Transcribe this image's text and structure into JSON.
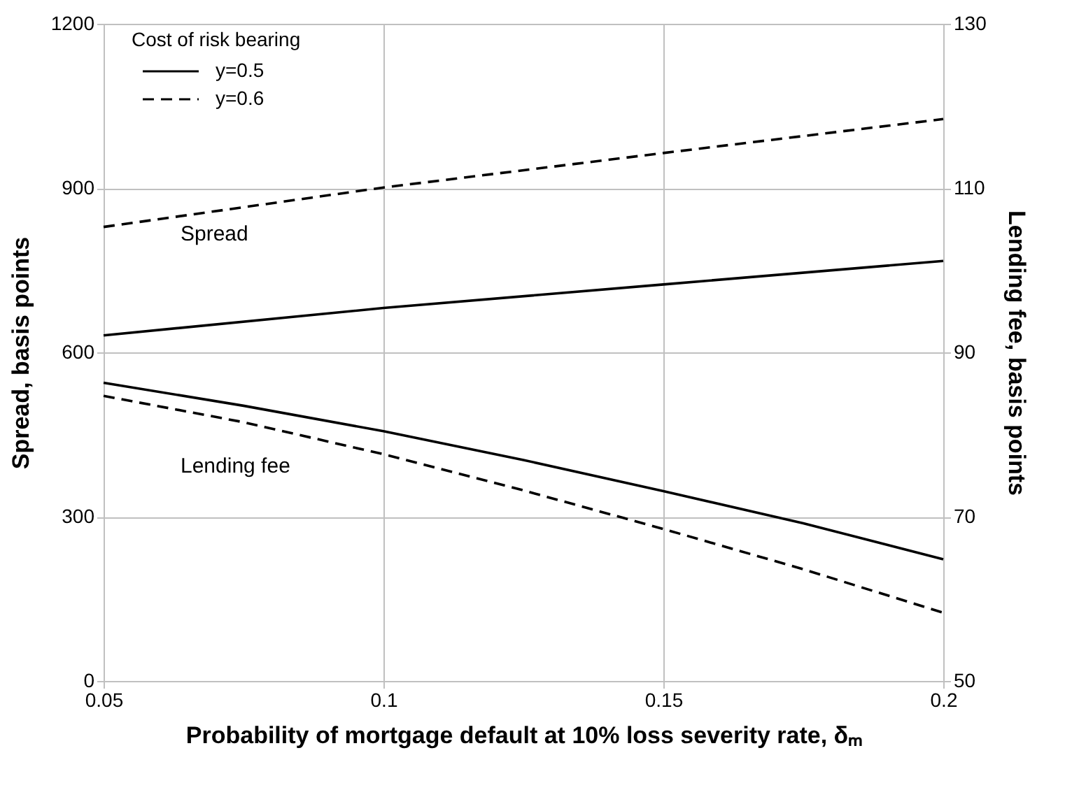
{
  "chart_data": {
    "type": "line",
    "xlabel": "Probability of mortgage default at 10% loss severity rate, δₘ",
    "ylabel": "Spread, basis points",
    "y2label": "Lending fee, basis points",
    "legend_title": "Cost of risk bearing",
    "series": [
      {
        "name": "y=0.5",
        "color": "#000000",
        "line_style": "solid",
        "x": [
          0.05,
          0.1,
          0.15,
          0.2
        ],
        "values": [
          631,
          681,
          724,
          767
        ]
      },
      {
        "name": "y=0.6",
        "color": "#000000",
        "line_style": "dashed",
        "x": [
          0.05,
          0.1,
          0.15,
          0.2
        ],
        "values": [
          829,
          901,
          964,
          1026
        ]
      },
      {
        "color": "#000000",
        "line_style": "solid",
        "axis": "y2",
        "x": [
          0.05,
          0.075,
          0.1,
          0.125,
          0.15,
          0.175,
          0.2
        ],
        "values": [
          86.3,
          83.5,
          80.4,
          76.9,
          73.1,
          69.2,
          64.8
        ]
      },
      {
        "color": "#000000",
        "line_style": "dashed",
        "axis": "y2",
        "x": [
          0.05,
          0.075,
          0.1,
          0.125,
          0.15,
          0.175,
          0.2
        ],
        "values": [
          84.7,
          81.5,
          77.6,
          73.2,
          68.5,
          63.6,
          58.3
        ]
      }
    ],
    "annotations": [
      "Spread",
      "Lending fee"
    ],
    "xlim": [
      0.05,
      0.2
    ],
    "xticks": [
      0.05,
      0.1,
      0.15,
      0.2
    ],
    "ylim": [
      0,
      1200
    ],
    "yticks": [
      0,
      300,
      600,
      900,
      1200
    ],
    "y2lim": [
      50,
      130
    ],
    "y2ticks": [
      50,
      70,
      90,
      110,
      130
    ],
    "grid": true,
    "legend": "top left",
    "marker": "none"
  }
}
